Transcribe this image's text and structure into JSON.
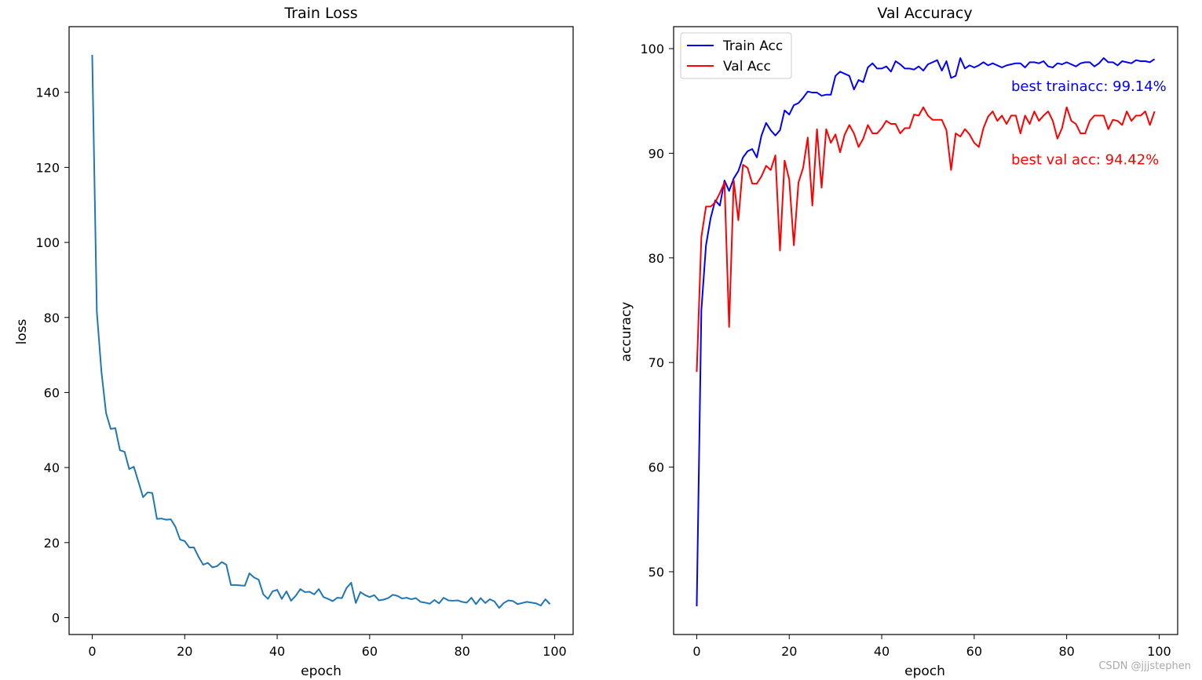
{
  "chart_data": [
    {
      "type": "line",
      "title": "Train Loss",
      "xlabel": "epoch",
      "ylabel": "loss",
      "xlim": [
        -5,
        104
      ],
      "ylim": [
        -4.5,
        157.5
      ],
      "xticks": [
        0,
        20,
        40,
        60,
        80,
        100
      ],
      "yticks": [
        0,
        20,
        40,
        60,
        80,
        100,
        120,
        140
      ],
      "grid": false,
      "series": [
        {
          "name": "loss",
          "color": "#1f77b4",
          "x": [
            0,
            1,
            2,
            3,
            4,
            5,
            6,
            7,
            8,
            9,
            10,
            11,
            12,
            13,
            14,
            15,
            16,
            17,
            18,
            19,
            20,
            21,
            22,
            23,
            24,
            25,
            26,
            27,
            28,
            29,
            30,
            31,
            32,
            33,
            34,
            35,
            36,
            37,
            38,
            39,
            40,
            41,
            42,
            43,
            44,
            45,
            46,
            47,
            48,
            49,
            50,
            51,
            52,
            53,
            54,
            55,
            56,
            57,
            58,
            59,
            60,
            61,
            62,
            63,
            64,
            65,
            66,
            67,
            68,
            69,
            70,
            71,
            72,
            73,
            74,
            75,
            76,
            77,
            78,
            79,
            80,
            81,
            82,
            83,
            84,
            85,
            86,
            87,
            88,
            89,
            90,
            91,
            92,
            93,
            94,
            95,
            96,
            97,
            98,
            99
          ],
          "values": [
            150,
            81.5,
            65.5,
            54.5,
            50.3,
            50.5,
            44.6,
            44.2,
            39.6,
            40.2,
            36.2,
            32.1,
            33.4,
            33.2,
            26.3,
            26.4,
            26.1,
            26.2,
            24.2,
            20.8,
            20.4,
            18.7,
            18.7,
            16.2,
            14.1,
            14.6,
            13.4,
            13.7,
            14.8,
            14.1,
            8.7,
            8.7,
            8.6,
            8.5,
            11.8,
            10.7,
            10.1,
            6.2,
            5,
            7,
            7.4,
            5,
            7,
            4.5,
            5.8,
            7.6,
            6.8,
            6.9,
            6.2,
            7.6,
            5.5,
            5,
            4.4,
            5.3,
            5.2,
            7.9,
            9.3,
            3.9,
            6.8,
            6,
            5.5,
            6,
            4.6,
            4.8,
            5.2,
            6.1,
            5.8,
            5.1,
            5.3,
            4.9,
            5.2,
            4.2,
            4,
            3.7,
            4.7,
            3.8,
            5.3,
            4.6,
            4.5,
            4.6,
            4.2,
            4,
            5.3,
            3.6,
            5.2,
            3.9,
            4.9,
            4.3,
            2.6,
            3.9,
            4.6,
            4.4,
            3.6,
            3.9,
            4.2,
            4,
            3.8,
            3.2,
            4.9,
            3.6
          ]
        }
      ]
    },
    {
      "type": "line",
      "title": "Val Accuracy",
      "xlabel": "epoch",
      "ylabel": "accuracy",
      "xlim": [
        -5,
        104
      ],
      "ylim": [
        44,
        102.1
      ],
      "xticks": [
        0,
        20,
        40,
        60,
        80,
        100
      ],
      "yticks": [
        50,
        60,
        70,
        80,
        90,
        100
      ],
      "grid": false,
      "legend": "top-left",
      "series": [
        {
          "name": "Train Acc",
          "color": "#0000ff",
          "x": [
            0,
            1,
            2,
            3,
            4,
            5,
            6,
            7,
            8,
            9,
            10,
            11,
            12,
            13,
            14,
            15,
            16,
            17,
            18,
            19,
            20,
            21,
            22,
            23,
            24,
            25,
            26,
            27,
            28,
            29,
            30,
            31,
            32,
            33,
            34,
            35,
            36,
            37,
            38,
            39,
            40,
            41,
            42,
            43,
            44,
            45,
            46,
            47,
            48,
            49,
            50,
            51,
            52,
            53,
            54,
            55,
            56,
            57,
            58,
            59,
            60,
            61,
            62,
            63,
            64,
            65,
            66,
            67,
            68,
            69,
            70,
            71,
            72,
            73,
            74,
            75,
            76,
            77,
            78,
            79,
            80,
            81,
            82,
            83,
            84,
            85,
            86,
            87,
            88,
            89,
            90,
            91,
            92,
            93,
            94,
            95,
            96,
            97,
            98,
            99
          ],
          "values": [
            46.7,
            75,
            81.2,
            83.8,
            85.5,
            85,
            87.4,
            86.4,
            87.6,
            88.3,
            89.6,
            90.2,
            90.4,
            89.6,
            91.7,
            92.9,
            92.2,
            91.7,
            92.2,
            94.1,
            93.7,
            94.6,
            94.8,
            95.3,
            95.9,
            95.8,
            95.8,
            95.5,
            95.6,
            95.6,
            97.4,
            97.8,
            97.6,
            97.4,
            96.1,
            97,
            96.8,
            98.2,
            98.6,
            98.1,
            98.1,
            98.3,
            97.8,
            98.8,
            98.5,
            98.1,
            98.1,
            98,
            98.3,
            97.9,
            98.5,
            98.7,
            98.9,
            97.9,
            98.8,
            97.2,
            97.4,
            99.1,
            98.1,
            98.4,
            98.2,
            98.4,
            98.7,
            98.4,
            98.6,
            98.4,
            98.2,
            98.4,
            98.5,
            98.6,
            98.6,
            98.2,
            98.7,
            98.7,
            98.6,
            98.8,
            98.3,
            98.2,
            98.6,
            98.5,
            98.7,
            98.5,
            98.3,
            98.6,
            98.7,
            98.7,
            98.3,
            98.6,
            99.1,
            98.7,
            98.7,
            98.4,
            98.8,
            98.7,
            98.6,
            98.9,
            98.8,
            98.8,
            98.7,
            99
          ]
        },
        {
          "name": "Val Acc",
          "color": "#ff0000",
          "x": [
            0,
            1,
            2,
            3,
            4,
            5,
            6,
            7,
            8,
            9,
            10,
            11,
            12,
            13,
            14,
            15,
            16,
            17,
            18,
            19,
            20,
            21,
            22,
            23,
            24,
            25,
            26,
            27,
            28,
            29,
            30,
            31,
            32,
            33,
            34,
            35,
            36,
            37,
            38,
            39,
            40,
            41,
            42,
            43,
            44,
            45,
            46,
            47,
            48,
            49,
            50,
            51,
            52,
            53,
            54,
            55,
            56,
            57,
            58,
            59,
            60,
            61,
            62,
            63,
            64,
            65,
            66,
            67,
            68,
            69,
            70,
            71,
            72,
            73,
            74,
            75,
            76,
            77,
            78,
            79,
            80,
            81,
            82,
            83,
            84,
            85,
            86,
            87,
            88,
            89,
            90,
            91,
            92,
            93,
            94,
            95,
            96,
            97,
            98,
            99
          ],
          "values": [
            69.1,
            82,
            84.9,
            84.9,
            85.3,
            86.2,
            87.2,
            73.4,
            87.4,
            83.6,
            88.9,
            88.6,
            87.1,
            87.1,
            87.8,
            88.8,
            88.4,
            89.8,
            80.7,
            89.3,
            87.5,
            81.2,
            87.2,
            88.6,
            91.5,
            85,
            92.3,
            86.7,
            92.3,
            91,
            91.8,
            90.1,
            91.8,
            92.7,
            91.9,
            90.6,
            91.4,
            92.7,
            91.9,
            91.9,
            92.4,
            93.1,
            92.8,
            92.8,
            91.9,
            92.4,
            92.4,
            93.7,
            93.6,
            94.4,
            93.6,
            93.2,
            93.2,
            93.2,
            92.2,
            88.4,
            91.9,
            91.6,
            92.3,
            91.8,
            91,
            90.6,
            92.4,
            93.5,
            94,
            93.1,
            93.6,
            92.8,
            93.6,
            93.6,
            91.9,
            93.6,
            92.8,
            94,
            93.1,
            93.6,
            94,
            93.1,
            91.4,
            92.4,
            94.4,
            93.1,
            92.8,
            91.9,
            91.9,
            93.1,
            93.6,
            93.6,
            93.6,
            92.3,
            93.2,
            93.1,
            92.7,
            94,
            93.1,
            93.6,
            93.6,
            94,
            92.7,
            94
          ]
        }
      ],
      "annotations": [
        {
          "text": "best trainacc: 99.14%",
          "color": "#0000ff",
          "x": 68,
          "y": 96.4
        },
        {
          "text": "best val acc: 94.42%",
          "color": "#ff0000",
          "x": 68,
          "y": 89.4
        }
      ]
    }
  ],
  "watermark": "CSDN @jjjstephen"
}
